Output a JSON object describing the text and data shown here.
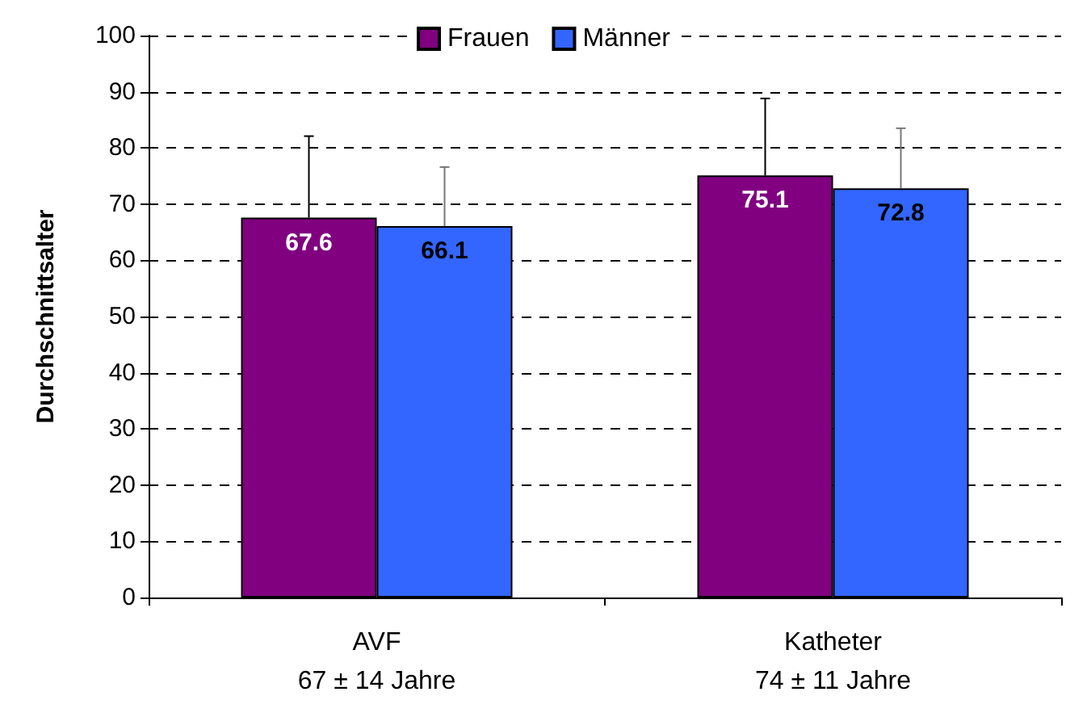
{
  "chart_data": {
    "type": "bar",
    "ylabel": "Durchschnittsalter",
    "categories": [
      "AVF\n67 ± 14 Jahre",
      "Katheter\n74 ± 11 Jahre"
    ],
    "series": [
      {
        "name": "Frauen",
        "color": "#800080",
        "values": [
          67.6,
          75.1
        ],
        "errors": [
          [
            67.6,
            82.1
          ],
          [
            75.1,
            88.8
          ]
        ]
      },
      {
        "name": "Männer",
        "color": "#3366ff",
        "values": [
          66.1,
          72.8
        ],
        "errors": [
          [
            66.1,
            76.6
          ],
          [
            72.8,
            83.5
          ]
        ]
      }
    ],
    "ylim": [
      0,
      100
    ],
    "yticks": [
      0,
      10,
      20,
      30,
      40,
      50,
      60,
      70,
      80,
      90,
      100
    ],
    "grid": "y",
    "legend": "top",
    "data_labels": true
  }
}
